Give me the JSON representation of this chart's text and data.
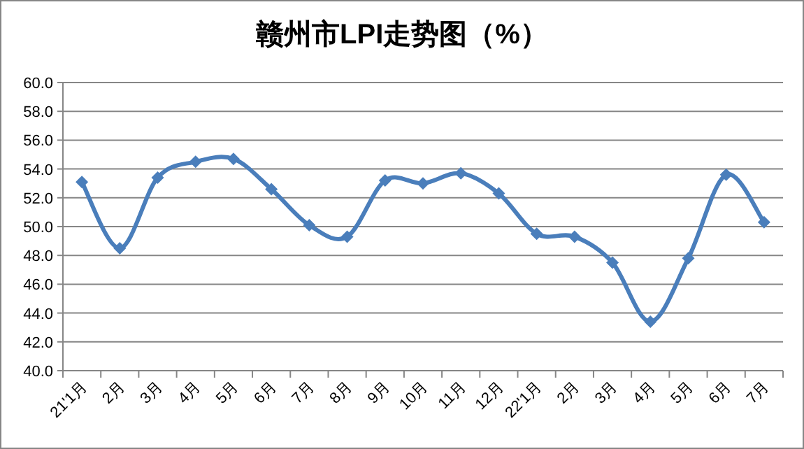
{
  "chart_data": {
    "type": "line",
    "title": "赣州市LPI走势图（%）",
    "categories": [
      "21'1月",
      "2月",
      "3月",
      "4月",
      "5月",
      "6月",
      "7月",
      "8月",
      "9月",
      "10月",
      "11月",
      "12月",
      "22'1月",
      "2月",
      "3月",
      "4月",
      "5月",
      "6月",
      "7月"
    ],
    "series": [
      {
        "color": "#4a7ebb",
        "values": [
          53.1,
          48.5,
          53.4,
          54.5,
          54.7,
          52.6,
          50.1,
          49.3,
          53.2,
          53.0,
          53.7,
          52.3,
          49.5,
          49.3,
          47.5,
          43.4,
          47.8,
          53.6,
          50.3
        ]
      }
    ],
    "ylim": [
      40,
      60
    ],
    "yticks": [
      {
        "value": 40,
        "label": "40.0"
      },
      {
        "value": 42,
        "label": "42.0"
      },
      {
        "value": 44,
        "label": "44.0"
      },
      {
        "value": 46,
        "label": "46.0"
      },
      {
        "value": 48,
        "label": "48.0"
      },
      {
        "value": 50,
        "label": "50.0"
      },
      {
        "value": 52,
        "label": "52.0"
      },
      {
        "value": 54,
        "label": "54.0"
      },
      {
        "value": 56,
        "label": "56.0"
      },
      {
        "value": 58,
        "label": "58.0"
      },
      {
        "value": 60,
        "label": "60.0"
      }
    ],
    "grid": "y",
    "marker": "diamond",
    "line_style": "solid"
  }
}
